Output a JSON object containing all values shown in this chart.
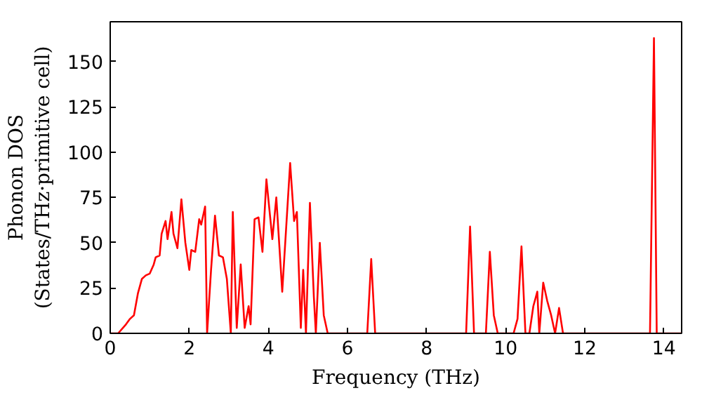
{
  "chart_data": {
    "type": "line",
    "xlabel": "Frequency (THz)",
    "ylabel": "Phonon DOS\n(States/THz·primitive cell)",
    "xlim": [
      0,
      14.45
    ],
    "ylim": [
      0,
      172
    ],
    "xticks": [
      0,
      2,
      4,
      6,
      8,
      10,
      12,
      14
    ],
    "yticks": [
      0,
      25,
      50,
      75,
      100,
      125,
      150
    ],
    "grid": false,
    "series": [
      {
        "color": "#ff0000",
        "x": [
          0,
          0.2,
          0.4,
          0.5,
          0.6,
          0.7,
          0.8,
          0.9,
          1.0,
          1.1,
          1.15,
          1.25,
          1.3,
          1.4,
          1.45,
          1.55,
          1.6,
          1.7,
          1.8,
          1.9,
          2.0,
          2.05,
          2.15,
          2.25,
          2.3,
          2.4,
          2.45,
          2.55,
          2.65,
          2.75,
          2.85,
          2.95,
          3.05,
          3.1,
          3.2,
          3.3,
          3.4,
          3.5,
          3.55,
          3.65,
          3.75,
          3.85,
          3.95,
          4.1,
          4.2,
          4.35,
          4.55,
          4.65,
          4.72,
          4.82,
          4.88,
          4.95,
          5.05,
          5.15,
          5.2,
          5.3,
          5.4,
          5.5,
          6.5,
          6.6,
          6.7,
          9.0,
          9.1,
          9.2,
          9.5,
          9.6,
          9.7,
          9.8,
          10.2,
          10.3,
          10.4,
          10.5,
          10.6,
          10.7,
          10.8,
          10.85,
          10.95,
          11.05,
          11.15,
          11.25,
          11.35,
          11.45,
          13.65,
          13.75,
          13.82,
          14.45
        ],
        "values": [
          0,
          0,
          5,
          8,
          10,
          22,
          30,
          32,
          33,
          38,
          42,
          43,
          55,
          62,
          52,
          67,
          55,
          47,
          74,
          50,
          35,
          46,
          45,
          63,
          60,
          70,
          0,
          35,
          65,
          43,
          42,
          30,
          0,
          67,
          3,
          38,
          3,
          15,
          5,
          63,
          64,
          45,
          85,
          52,
          75,
          23,
          94,
          62,
          67,
          3,
          35,
          0,
          72,
          20,
          0,
          50,
          10,
          0,
          0,
          41,
          0,
          0,
          59,
          0,
          0,
          45,
          10,
          0,
          0,
          8,
          48,
          0,
          0,
          15,
          23,
          0,
          28,
          18,
          10,
          0,
          14,
          0,
          0,
          163,
          0,
          0
        ]
      }
    ]
  }
}
